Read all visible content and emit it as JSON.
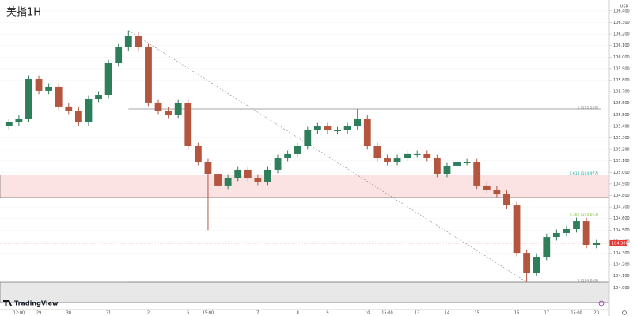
{
  "chart_data": {
    "type": "candlestick",
    "title": "美指1H",
    "currency": "USD",
    "categories": [
      null,
      "12:00",
      null,
      "29",
      null,
      null,
      "30",
      null,
      null,
      null,
      "31",
      null,
      null,
      null,
      "2",
      null,
      null,
      null,
      "5",
      null,
      "15:00",
      null,
      null,
      null,
      null,
      "7",
      null,
      null,
      null,
      "8",
      null,
      null,
      "9",
      null,
      null,
      null,
      "10",
      null,
      "15:00",
      null,
      null,
      "13",
      null,
      null,
      "14",
      null,
      null,
      "15",
      null,
      null,
      null,
      "16",
      null,
      null,
      "17",
      null,
      null,
      "15:00",
      null,
      "20"
    ],
    "open": [
      105.4,
      105.434,
      105.468,
      105.81,
      105.708,
      105.742,
      105.571,
      105.536,
      105.434,
      105.639,
      105.673,
      105.947,
      106.084,
      106.187,
      106.084,
      105.605,
      105.536,
      105.502,
      105.605,
      105.228,
      105.091,
      104.988,
      104.886,
      104.954,
      105.023,
      104.954,
      104.92,
      105.023,
      105.125,
      105.16,
      105.228,
      105.365,
      105.399,
      105.365,
      105.365,
      105.399,
      105.468,
      105.228,
      105.125,
      105.091,
      105.125,
      105.16,
      105.16,
      105.125,
      104.988,
      105.057,
      105.091,
      105.091,
      104.886,
      104.851,
      104.817,
      104.714,
      104.303,
      104.132,
      104.269,
      104.44,
      104.475,
      104.509,
      104.577,
      104.372
    ],
    "high": [
      105.464,
      105.498,
      105.84,
      105.84,
      105.772,
      105.772,
      105.601,
      105.566,
      105.669,
      105.703,
      105.977,
      106.114,
      106.23,
      106.217,
      106.114,
      105.635,
      105.566,
      105.635,
      105.635,
      105.258,
      105.121,
      105.018,
      104.984,
      105.053,
      105.053,
      104.984,
      105.053,
      105.155,
      105.19,
      105.258,
      105.395,
      105.429,
      105.429,
      105.395,
      105.429,
      105.55,
      105.498,
      105.258,
      105.155,
      105.155,
      105.19,
      105.19,
      105.19,
      105.155,
      105.087,
      105.121,
      105.121,
      105.121,
      104.916,
      104.881,
      104.847,
      104.744,
      104.333,
      104.299,
      104.47,
      104.505,
      104.539,
      104.607,
      104.607,
      104.416
    ],
    "low": [
      105.37,
      105.404,
      105.438,
      105.678,
      105.678,
      105.541,
      105.506,
      105.404,
      105.404,
      105.609,
      105.643,
      105.917,
      106.054,
      106.054,
      105.575,
      105.506,
      105.472,
      105.472,
      105.198,
      105.061,
      104.5,
      104.856,
      104.856,
      104.924,
      104.924,
      104.89,
      104.89,
      104.993,
      105.095,
      105.13,
      105.198,
      105.335,
      105.335,
      105.335,
      105.335,
      105.369,
      105.198,
      105.095,
      105.061,
      105.061,
      105.095,
      105.13,
      105.095,
      104.958,
      104.958,
      105.027,
      105.061,
      104.856,
      104.821,
      104.787,
      104.684,
      104.273,
      104.05,
      104.102,
      104.239,
      104.41,
      104.445,
      104.479,
      104.342,
      104.342
    ],
    "close": [
      105.434,
      105.468,
      105.81,
      105.708,
      105.742,
      105.571,
      105.536,
      105.434,
      105.639,
      105.673,
      105.947,
      106.084,
      106.187,
      106.084,
      105.605,
      105.536,
      105.502,
      105.605,
      105.228,
      105.091,
      104.988,
      104.886,
      104.954,
      105.023,
      104.954,
      104.92,
      105.023,
      105.125,
      105.16,
      105.228,
      105.365,
      105.399,
      105.365,
      105.365,
      105.399,
      105.468,
      105.228,
      105.125,
      105.091,
      105.125,
      105.16,
      105.16,
      105.125,
      104.988,
      105.057,
      105.091,
      105.091,
      104.886,
      104.851,
      104.817,
      104.714,
      104.303,
      104.132,
      104.269,
      104.44,
      104.475,
      104.509,
      104.577,
      104.372,
      104.386
    ],
    "up_color": "#2e7d5b",
    "down_color": "#b4553f",
    "ylim": [
      103.872,
      106.495
    ],
    "yticks": [
      {
        "value": 104.0,
        "label": "104.000"
      },
      {
        "value": 104.1,
        "label": "104.100"
      },
      {
        "value": 104.2,
        "label": "104.200"
      },
      {
        "value": 104.3,
        "label": "104.300"
      },
      {
        "value": 104.4,
        "label": "104.400"
      },
      {
        "value": 104.5,
        "label": "104.500"
      },
      {
        "value": 104.6,
        "label": "104.600"
      },
      {
        "value": 104.7,
        "label": "104.700"
      },
      {
        "value": 104.8,
        "label": "104.800"
      },
      {
        "value": 104.9,
        "label": "104.900"
      },
      {
        "value": 105.0,
        "label": "105.000"
      },
      {
        "value": 105.1,
        "label": "105.100"
      },
      {
        "value": 105.2,
        "label": "105.200"
      },
      {
        "value": 105.3,
        "label": "105.300"
      },
      {
        "value": 105.4,
        "label": "105.400"
      },
      {
        "value": 105.5,
        "label": "105.500"
      },
      {
        "value": 105.6,
        "label": "105.600"
      },
      {
        "value": 105.7,
        "label": "105.700"
      },
      {
        "value": 105.8,
        "label": "105.800"
      },
      {
        "value": 105.9,
        "label": "105.900"
      },
      {
        "value": 106.0,
        "label": "106.000"
      },
      {
        "value": 106.1,
        "label": "106.100"
      },
      {
        "value": 106.2,
        "label": "106.200"
      },
      {
        "value": 106.3,
        "label": "106.300"
      },
      {
        "value": 106.4,
        "label": "106.400"
      }
    ],
    "zones": [
      {
        "from": 104.783,
        "to": 104.977,
        "color": "#fbe3e3"
      },
      {
        "from": 103.872,
        "to": 104.05,
        "color": "#e8e8e8"
      }
    ],
    "fib_levels": [
      {
        "label": "1 (105.550)",
        "value": 105.55,
        "color": "#888888"
      },
      {
        "label": "0.618 (104.977)",
        "value": 104.977,
        "color": "#26a69a"
      },
      {
        "label": "0.382 (104.623)",
        "value": 104.623,
        "color": "#8bc34a"
      },
      {
        "label": "0 (104.050)",
        "value": 104.05,
        "color": "#888888"
      }
    ],
    "last_price": 104.386,
    "last_price_color": "#e53935",
    "logo": "TradingView"
  }
}
